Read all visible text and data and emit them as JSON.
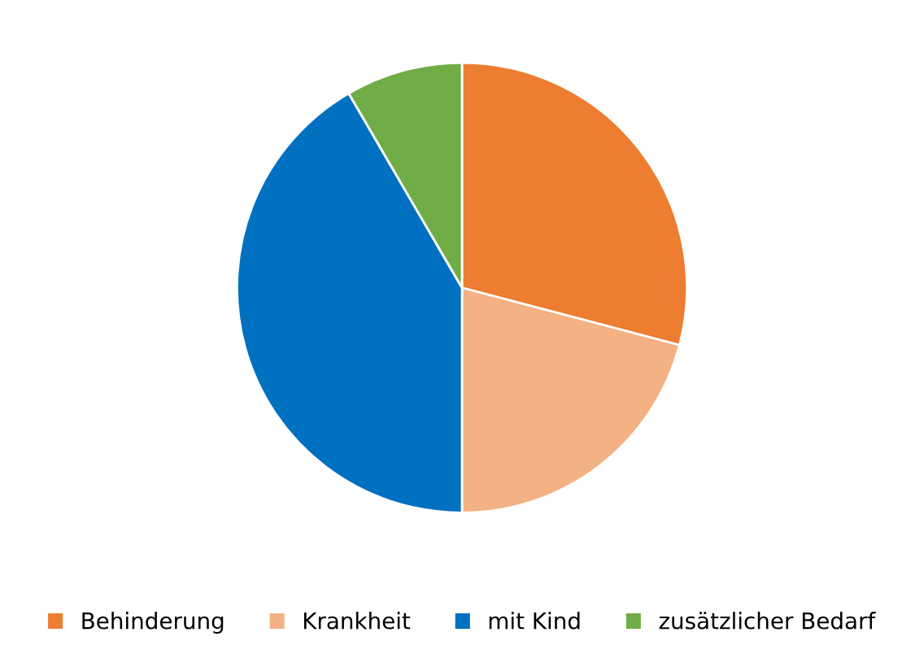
{
  "chart_data": {
    "type": "pie",
    "categories": [
      "Behinderung",
      "Krankheit",
      "mit Kind",
      "zusätzlicher Bedarf"
    ],
    "values": [
      29.1,
      20.9,
      41.6,
      8.4
    ],
    "colors": [
      "#ed7d31",
      "#f4b183",
      "#0070c0",
      "#70ad47"
    ],
    "legend": "bottom"
  }
}
